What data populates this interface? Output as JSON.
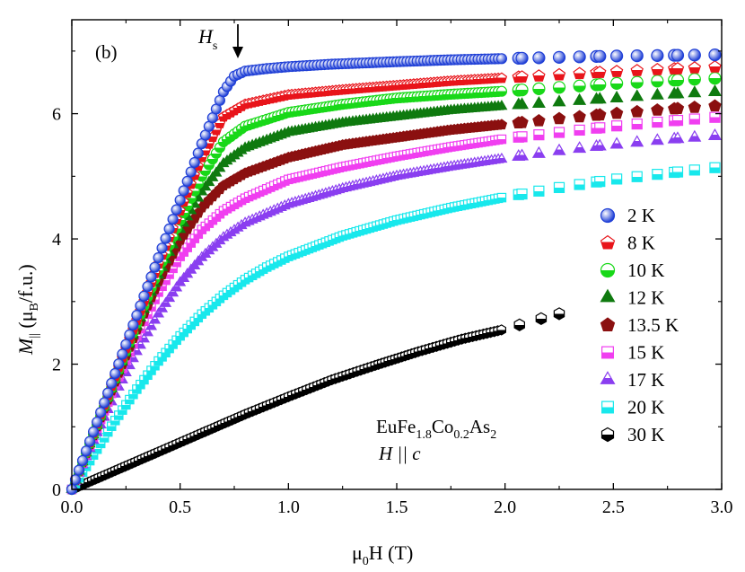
{
  "panel_label": "(b)",
  "annotation": {
    "symbol": "H",
    "subscript": "s"
  },
  "sample": {
    "formula_parts": [
      {
        "t": "EuFe",
        "s": "main"
      },
      {
        "t": "1.8",
        "s": "sub"
      },
      {
        "t": "Co",
        "s": "main"
      },
      {
        "t": "0.2",
        "s": "sub"
      },
      {
        "t": "As",
        "s": "main"
      },
      {
        "t": "2",
        "s": "sub"
      }
    ],
    "orientation": "H || c"
  },
  "chart_data": {
    "type": "scatter",
    "xlabel": {
      "prefix": "μ",
      "sub": "0",
      "rest": "H (T)"
    },
    "ylabel": {
      "prefix": "M",
      "sub": "||",
      "rest1": " (μ",
      "sub2": "B",
      "rest2": "/f.u.)"
    },
    "xlim": [
      0,
      3.0
    ],
    "ylim": [
      0,
      7.5
    ],
    "xticks": [
      "0.0",
      "0.5",
      "1.0",
      "1.5",
      "2.0",
      "2.5",
      "3.0"
    ],
    "yticks": [
      "0",
      "2",
      "4",
      "6"
    ],
    "grid": false,
    "legend_position": "bottom-right",
    "series": [
      {
        "name": "2 K",
        "color": "#1f3fd6",
        "marker": "sphere",
        "points": [
          [
            0,
            0
          ],
          [
            0.1,
            0.92
          ],
          [
            0.2,
            1.85
          ],
          [
            0.3,
            2.78
          ],
          [
            0.4,
            3.7
          ],
          [
            0.5,
            4.62
          ],
          [
            0.6,
            5.52
          ],
          [
            0.7,
            6.35
          ],
          [
            0.75,
            6.6
          ],
          [
            0.8,
            6.68
          ],
          [
            0.9,
            6.72
          ],
          [
            1.0,
            6.75
          ],
          [
            1.2,
            6.79
          ],
          [
            1.5,
            6.83
          ],
          [
            1.75,
            6.86
          ],
          [
            2.0,
            6.88
          ],
          [
            2.25,
            6.9
          ],
          [
            2.5,
            6.92
          ],
          [
            2.75,
            6.93
          ],
          [
            3.0,
            6.94
          ]
        ]
      },
      {
        "name": "8 K",
        "color": "#e8141a",
        "marker": "pentagon-half",
        "points": [
          [
            0,
            0
          ],
          [
            0.1,
            0.9
          ],
          [
            0.2,
            1.8
          ],
          [
            0.3,
            2.7
          ],
          [
            0.4,
            3.6
          ],
          [
            0.5,
            4.45
          ],
          [
            0.6,
            5.3
          ],
          [
            0.7,
            5.95
          ],
          [
            0.8,
            6.15
          ],
          [
            1.0,
            6.3
          ],
          [
            1.25,
            6.38
          ],
          [
            1.5,
            6.45
          ],
          [
            1.75,
            6.52
          ],
          [
            2.0,
            6.57
          ],
          [
            2.25,
            6.62
          ],
          [
            2.5,
            6.67
          ],
          [
            2.75,
            6.71
          ],
          [
            3.0,
            6.75
          ]
        ]
      },
      {
        "name": "10 K",
        "color": "#18d818",
        "marker": "circle-half",
        "points": [
          [
            0,
            0
          ],
          [
            0.1,
            0.88
          ],
          [
            0.2,
            1.77
          ],
          [
            0.3,
            2.65
          ],
          [
            0.4,
            3.5
          ],
          [
            0.5,
            4.3
          ],
          [
            0.6,
            5.0
          ],
          [
            0.7,
            5.55
          ],
          [
            0.8,
            5.8
          ],
          [
            1.0,
            6.02
          ],
          [
            1.25,
            6.15
          ],
          [
            1.5,
            6.25
          ],
          [
            1.75,
            6.31
          ],
          [
            2.0,
            6.36
          ],
          [
            2.25,
            6.42
          ],
          [
            2.5,
            6.48
          ],
          [
            2.75,
            6.53
          ],
          [
            3.0,
            6.57
          ]
        ]
      },
      {
        "name": "12 K",
        "color": "#0f7a0f",
        "marker": "triangle",
        "points": [
          [
            0,
            0
          ],
          [
            0.1,
            0.87
          ],
          [
            0.2,
            1.75
          ],
          [
            0.3,
            2.6
          ],
          [
            0.4,
            3.42
          ],
          [
            0.5,
            4.15
          ],
          [
            0.6,
            4.75
          ],
          [
            0.7,
            5.2
          ],
          [
            0.8,
            5.45
          ],
          [
            1.0,
            5.7
          ],
          [
            1.25,
            5.85
          ],
          [
            1.5,
            5.95
          ],
          [
            1.75,
            6.05
          ],
          [
            2.0,
            6.12
          ],
          [
            2.25,
            6.18
          ],
          [
            2.5,
            6.24
          ],
          [
            2.75,
            6.3
          ],
          [
            3.0,
            6.35
          ]
        ]
      },
      {
        "name": "13.5 K",
        "color": "#8b1010",
        "marker": "pentagon",
        "points": [
          [
            0,
            0
          ],
          [
            0.1,
            0.86
          ],
          [
            0.2,
            1.72
          ],
          [
            0.3,
            2.55
          ],
          [
            0.4,
            3.32
          ],
          [
            0.5,
            3.98
          ],
          [
            0.6,
            4.5
          ],
          [
            0.7,
            4.85
          ],
          [
            0.8,
            5.05
          ],
          [
            1.0,
            5.3
          ],
          [
            1.25,
            5.5
          ],
          [
            1.5,
            5.62
          ],
          [
            1.75,
            5.74
          ],
          [
            2.0,
            5.83
          ],
          [
            2.25,
            5.92
          ],
          [
            2.5,
            6.0
          ],
          [
            2.75,
            6.07
          ],
          [
            3.0,
            6.13
          ]
        ]
      },
      {
        "name": "15 K",
        "color": "#f03ef0",
        "marker": "square-half",
        "points": [
          [
            0,
            0
          ],
          [
            0.1,
            0.84
          ],
          [
            0.2,
            1.67
          ],
          [
            0.3,
            2.45
          ],
          [
            0.4,
            3.15
          ],
          [
            0.5,
            3.72
          ],
          [
            0.6,
            4.15
          ],
          [
            0.7,
            4.45
          ],
          [
            0.8,
            4.65
          ],
          [
            1.0,
            4.95
          ],
          [
            1.25,
            5.15
          ],
          [
            1.5,
            5.32
          ],
          [
            1.75,
            5.47
          ],
          [
            2.0,
            5.6
          ],
          [
            2.25,
            5.7
          ],
          [
            2.5,
            5.8
          ],
          [
            2.75,
            5.88
          ],
          [
            3.0,
            5.95
          ]
        ]
      },
      {
        "name": "17 K",
        "color": "#8a3ef0",
        "marker": "triangle-half",
        "points": [
          [
            0,
            0
          ],
          [
            0.1,
            0.78
          ],
          [
            0.2,
            1.52
          ],
          [
            0.3,
            2.2
          ],
          [
            0.4,
            2.8
          ],
          [
            0.5,
            3.3
          ],
          [
            0.6,
            3.7
          ],
          [
            0.7,
            4.02
          ],
          [
            0.8,
            4.25
          ],
          [
            1.0,
            4.55
          ],
          [
            1.25,
            4.8
          ],
          [
            1.5,
            5.0
          ],
          [
            1.75,
            5.15
          ],
          [
            2.0,
            5.28
          ],
          [
            2.25,
            5.4
          ],
          [
            2.5,
            5.5
          ],
          [
            2.75,
            5.58
          ],
          [
            3.0,
            5.65
          ]
        ]
      },
      {
        "name": "20 K",
        "color": "#18e8ec",
        "marker": "square-half",
        "points": [
          [
            0,
            0
          ],
          [
            0.1,
            0.55
          ],
          [
            0.2,
            1.1
          ],
          [
            0.3,
            1.6
          ],
          [
            0.4,
            2.05
          ],
          [
            0.5,
            2.45
          ],
          [
            0.6,
            2.8
          ],
          [
            0.7,
            3.1
          ],
          [
            0.8,
            3.35
          ],
          [
            0.9,
            3.55
          ],
          [
            1.0,
            3.72
          ],
          [
            1.25,
            4.05
          ],
          [
            1.5,
            4.3
          ],
          [
            1.75,
            4.5
          ],
          [
            2.0,
            4.67
          ],
          [
            2.25,
            4.82
          ],
          [
            2.5,
            4.95
          ],
          [
            2.75,
            5.05
          ],
          [
            3.0,
            5.15
          ]
        ]
      },
      {
        "name": "30 K",
        "color": "#000000",
        "marker": "hexagon-half",
        "points": [
          [
            0,
            0
          ],
          [
            0.2,
            0.3
          ],
          [
            0.4,
            0.6
          ],
          [
            0.6,
            0.9
          ],
          [
            0.8,
            1.2
          ],
          [
            1.0,
            1.48
          ],
          [
            1.2,
            1.75
          ],
          [
            1.4,
            1.98
          ],
          [
            1.6,
            2.2
          ],
          [
            1.8,
            2.4
          ],
          [
            2.0,
            2.56
          ],
          [
            2.1,
            2.66
          ],
          [
            2.2,
            2.76
          ],
          [
            2.3,
            2.85
          ]
        ]
      }
    ]
  }
}
